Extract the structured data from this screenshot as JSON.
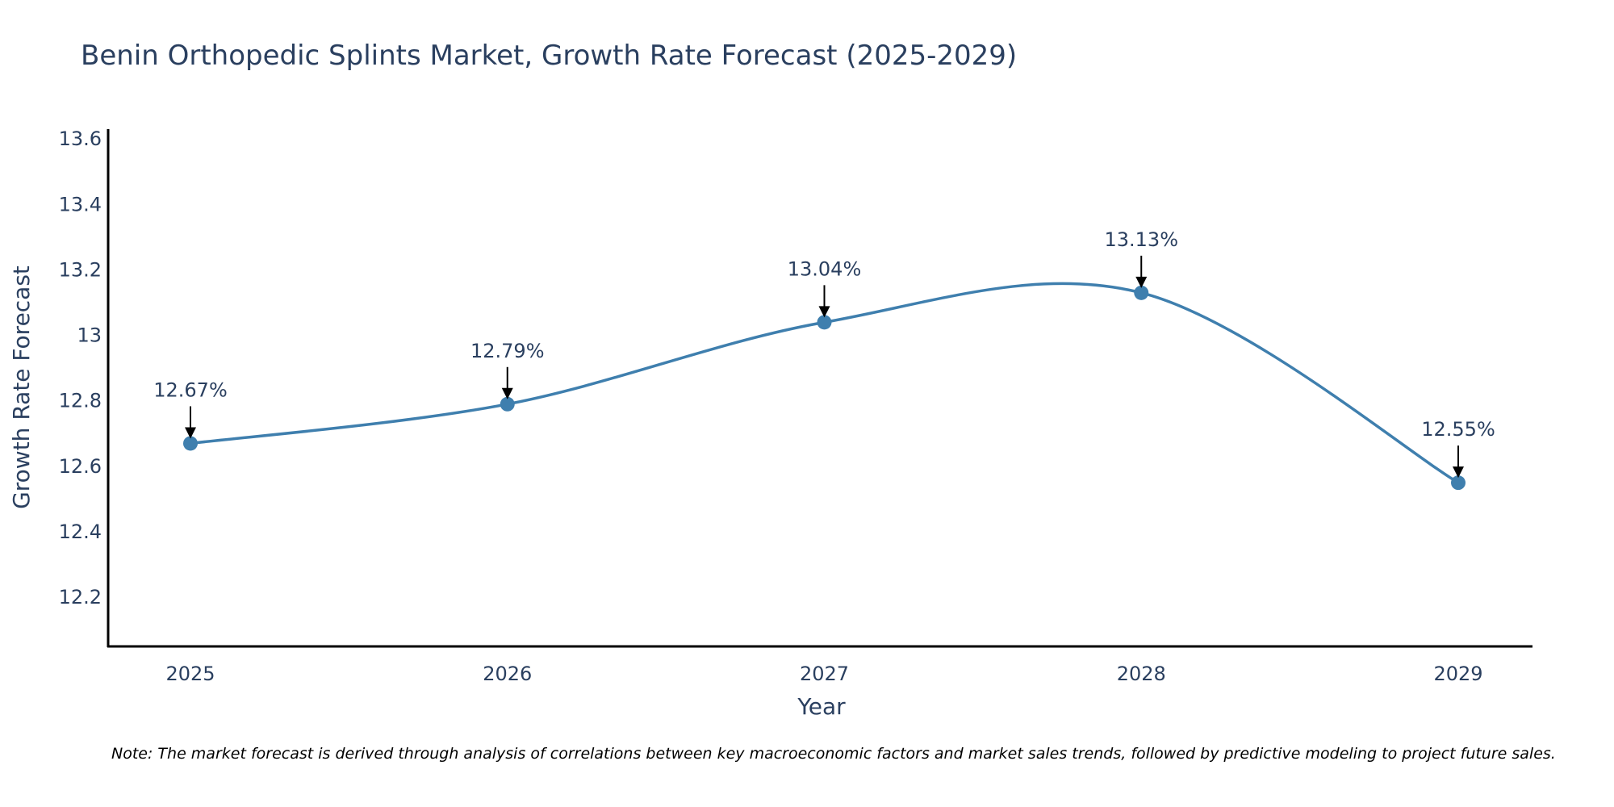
{
  "chart_data": {
    "type": "line",
    "title": "Benin Orthopedic Splints Market, Growth Rate Forecast (2025-2029)",
    "xlabel": "Year",
    "ylabel": "Growth Rate Forecast",
    "x": [
      "2025",
      "2026",
      "2027",
      "2028",
      "2029"
    ],
    "series": [
      {
        "name": "Growth Rate Forecast",
        "values": [
          12.67,
          12.79,
          13.04,
          13.13,
          12.55
        ],
        "color": "#3f7fae",
        "smoothing": "spline"
      }
    ],
    "annotations": [
      "12.67%",
      "12.79%",
      "13.04%",
      "13.13%",
      "12.55%"
    ],
    "ylim": [
      12.05,
      13.63
    ],
    "yticks": [
      12.2,
      12.4,
      12.6,
      12.8,
      13,
      13.2,
      13.4,
      13.6
    ],
    "ytick_labels": [
      "12.2",
      "12.4",
      "12.6",
      "12.8",
      "13",
      "13.2",
      "13.4",
      "13.6"
    ],
    "grid": false,
    "note": "Note: The market forecast is derived through analysis of correlations between key macroeconomic factors and market sales trends, followed by predictive modeling to project future sales."
  }
}
